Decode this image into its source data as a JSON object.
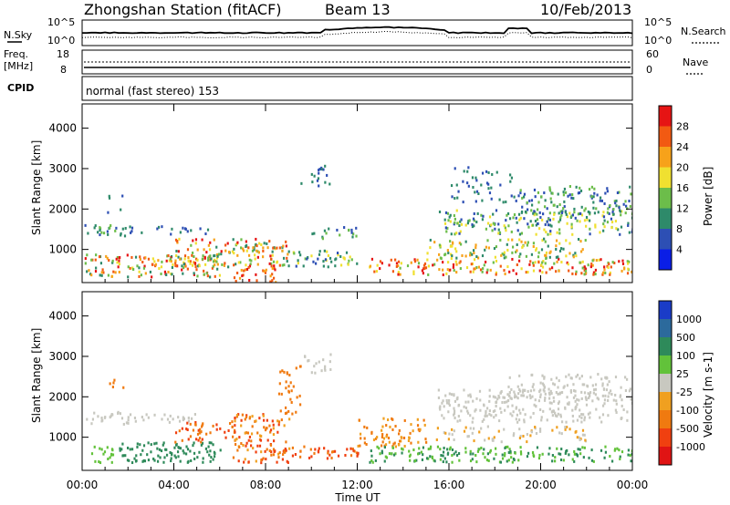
{
  "header": {
    "station": "Zhongshan Station (fitACF)",
    "beam": "Beam 13",
    "date": "10/Feb/2013"
  },
  "status_panels": {
    "nsky_label": "N.Sky",
    "nsearch_label": "N.Search",
    "freq_label_1": "Freq.",
    "freq_label_2": "[MHz]",
    "nave_label": "Nave",
    "cpid_label": "CPID",
    "cpid_text": "normal (fast stereo) 153",
    "noise_left_ticks": [
      "10^5",
      "10^0"
    ],
    "noise_right_ticks": [
      "10^5",
      "10^0"
    ],
    "freq_ticks": [
      "18",
      "8"
    ],
    "nave_ticks": [
      "60",
      "0"
    ]
  },
  "chart_data": [
    {
      "type": "heatmap",
      "title": "Power",
      "xlabel": "Time UT",
      "ylabel": "Slant Range [km]",
      "x_range_hours": [
        0,
        24
      ],
      "ylim": [
        180,
        4600
      ],
      "x_ticks": [
        "00:00",
        "04:00",
        "08:00",
        "12:00",
        "16:00",
        "20:00",
        "00:00"
      ],
      "y_ticks": [
        "1000",
        "2000",
        "3000",
        "4000"
      ],
      "colorbar_label": "Power [dB]",
      "colorbar_ticks": [
        "4",
        "8",
        "12",
        "16",
        "20",
        "24",
        "28"
      ],
      "colorbar_colors": [
        "#0a1ee6",
        "#2d4fb4",
        "#2e8a6a",
        "#6cbd4a",
        "#f0e030",
        "#f7a21a",
        "#f25a12",
        "#e61414"
      ],
      "grid": false
    },
    {
      "type": "heatmap",
      "title": "Velocity",
      "xlabel": "Time UT",
      "ylabel": "Slant Range [km]",
      "x_range_hours": [
        0,
        24
      ],
      "ylim": [
        180,
        4600
      ],
      "x_ticks": [
        "00:00",
        "04:00",
        "08:00",
        "12:00",
        "16:00",
        "20:00",
        "00:00"
      ],
      "y_ticks": [
        "1000",
        "2000",
        "3000",
        "4000"
      ],
      "colorbar_label": "Velocity [m s-1]",
      "colorbar_ticks": [
        "1000",
        "500",
        "100",
        "25",
        "-25",
        "-100",
        "-500",
        "-1000"
      ],
      "colorbar_colors": [
        "#1a3cc8",
        "#2c6a9c",
        "#2e8a5a",
        "#62c23a",
        "#c8c8c0",
        "#f0a020",
        "#f07a10",
        "#f04010",
        "#e01414"
      ],
      "grid": false
    }
  ]
}
